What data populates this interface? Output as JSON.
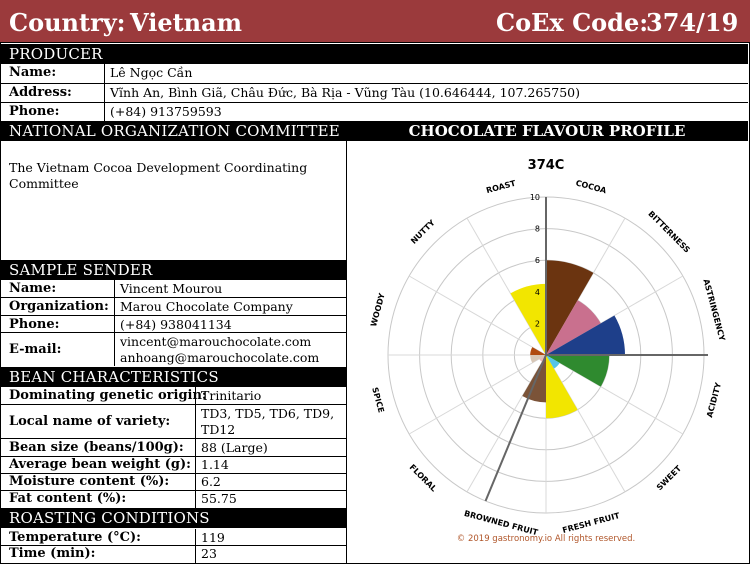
{
  "header": {
    "country_label": "Country:",
    "country": "Vietnam",
    "coex_label": "CoEx Code:",
    "coex": "374/19",
    "bg_color": "#9b3a3c"
  },
  "producer": {
    "title": "PRODUCER",
    "name_label": "Name:",
    "name": "Lê Ngọc Cần",
    "address_label": "Address:",
    "address": "Vĩnh An, Bình Giã, Châu Đức, Bà Rịa - Vũng Tàu (10.646444, 107.265750)",
    "phone_label": "Phone:",
    "phone": "(+84) 913759593"
  },
  "committee": {
    "title": "NATIONAL ORGANIZATION COMMITTEE",
    "line1": "The Vietnam Cocoa Development Coordinating",
    "line2": "Committee"
  },
  "sender": {
    "title": "SAMPLE SENDER",
    "name_label": "Name:",
    "name": "Vincent Mourou",
    "org_label": "Organization:",
    "org": "Marou Chocolate Company",
    "phone_label": "Phone:",
    "phone": "(+84) 938041134",
    "email_label": "E-mail:",
    "email1": "vincent@marouchocolate.com",
    "email2": "anhoang@marouchocolate.com"
  },
  "bean": {
    "title": "BEAN CHARACTERISTICS",
    "genetic_label": "Dominating genetic origin:",
    "genetic": "Trinitario",
    "variety_label": "Local name of variety:",
    "variety1": "TD3, TD5, TD6, TD9,",
    "variety2": "TD12",
    "size_label": "Bean size (beans/100g):",
    "size": "88 (Large)",
    "weight_label": "Average bean weight (g):",
    "weight": "1.14",
    "moisture_label": "Moisture content (%):",
    "moisture": "6.2",
    "fat_label": "Fat content (%):",
    "fat": "55.75"
  },
  "roasting": {
    "title": "ROASTING CONDITIONS",
    "temp_label": "Temperature (°C):",
    "temp": "119",
    "time_label": "Time (min):",
    "time": "23"
  },
  "chart_title": "CHOCOLATE FLAVOUR PROFILE",
  "copyright": "© 2019 gastronomy.io All rights reserved.",
  "chart_data": {
    "type": "polar-bar",
    "title": "374C",
    "rlim": [
      0,
      10
    ],
    "radial_ticks": [
      2,
      4,
      6,
      8,
      10
    ],
    "categories": [
      "COCOA",
      "BITTERNESS",
      "ASTRINGENCY",
      "ACIDITY",
      "SWEET",
      "FRESH FRUIT",
      "BROWNED FRUIT",
      "FLORAL",
      "SPICE",
      "WOODY",
      "NUTTY",
      "ROAST"
    ],
    "values": [
      6,
      4,
      5,
      4,
      1,
      4,
      3,
      0.5,
      1,
      1,
      0,
      4.5
    ],
    "colors": [
      "#6b3410",
      "#c9708e",
      "#1e3f8a",
      "#2f8a2f",
      "#56c4e8",
      "#f2e600",
      "#7b5338",
      "#e6b8b8",
      "#d8c7b7",
      "#b04a10",
      "#c08a3e",
      "#f2e600"
    ],
    "grid": true
  }
}
